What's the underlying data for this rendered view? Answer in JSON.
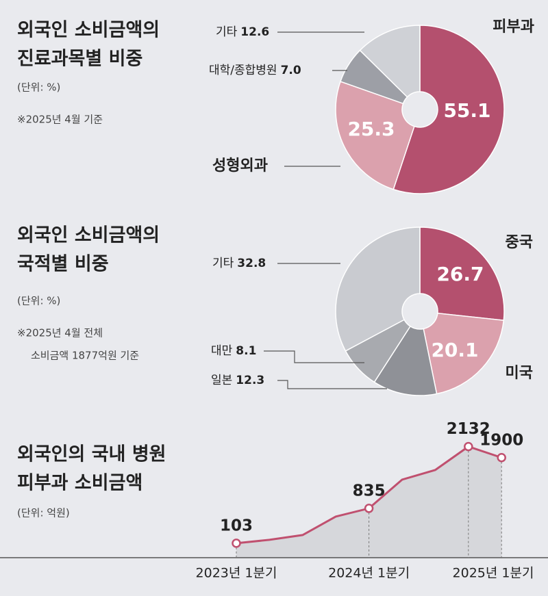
{
  "chart_data": [
    {
      "type": "donut",
      "title": [
        "외국인 소비금액의",
        "진료과목별 비중"
      ],
      "subtitle": "(단위: %)",
      "note": [
        "※2025년 4월 기준"
      ],
      "categories": [
        "피부과",
        "성형외과",
        "대학/종합병원",
        "기타"
      ],
      "values": [
        55.1,
        25.3,
        7.0,
        12.6
      ],
      "value_labels": [
        "55.1",
        "25.3",
        "7.0",
        "12.6"
      ],
      "colors": [
        "#b4506e",
        "#dba1ad",
        "#9d9fa6",
        "#cfd1d6"
      ]
    },
    {
      "type": "donut",
      "title": [
        "외국인 소비금액의",
        "국적별 비중"
      ],
      "subtitle": "(단위: %)",
      "note": [
        "※2025년 4월 전체",
        "소비금액 1877억원 기준"
      ],
      "categories": [
        "중국",
        "미국",
        "일본",
        "대만",
        "기타"
      ],
      "values": [
        26.7,
        20.1,
        12.3,
        8.1,
        32.8
      ],
      "value_labels": [
        "26.7",
        "20.1",
        "12.3",
        "8.1",
        "32.8"
      ],
      "colors": [
        "#b4506e",
        "#dba1ad",
        "#8f9197",
        "#a8aaaf",
        "#c9cbd0"
      ]
    },
    {
      "type": "area",
      "title": [
        "외국인의 국내 병원",
        "피부과 소비금액"
      ],
      "subtitle": "(단위: 억원)",
      "categories": [
        "2023년 1분기",
        null,
        null,
        null,
        "2024년 1분기",
        null,
        null,
        null,
        "2025년 1분기"
      ],
      "values": [
        103,
        175,
        275,
        663,
        835,
        1437,
        1640,
        2132,
        1900
      ],
      "value_labels": [
        "103",
        null,
        null,
        null,
        "835",
        null,
        null,
        "2132",
        "1900"
      ],
      "color": "#c0506f",
      "fill": "#d6d7db",
      "ylim": [
        -200,
        2600
      ]
    }
  ]
}
